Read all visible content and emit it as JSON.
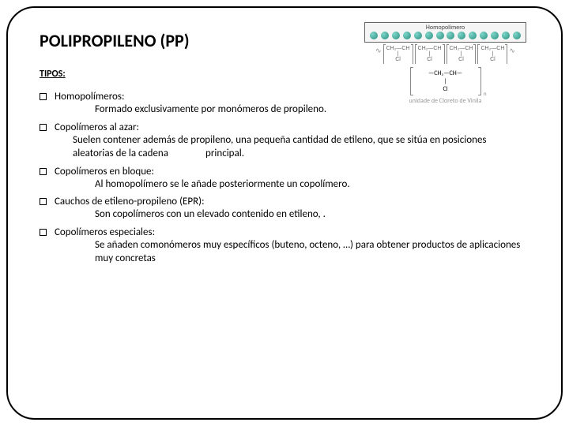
{
  "title": "POLIPROPILENO (PP)",
  "subtitle": "TIPOS:",
  "diagram": {
    "chain_label": "Homopolímero",
    "bead_color": "#2a8f82",
    "formula_groups": [
      "CH₂—CH",
      "CH₂—CH",
      "CH₂—CH",
      "CH₂—CH"
    ],
    "pendant": "Cl",
    "repeat_unit_top": "—CH₂—CH—",
    "repeat_unit_bottom": "Cl",
    "subscript": "n",
    "caption": "unidade de Cloreto de Vinila"
  },
  "items": [
    {
      "head": "Homopolímeros:",
      "body": "Formado exclusivamente por monómeros de propileno.",
      "shiftleft": false
    },
    {
      "head": "Copolímeros al azar:",
      "body": "Suelen contener además de propileno, una pequeña cantidad de etileno, que se sitúa en posiciones aleatorias de la cadena                principal.",
      "shiftleft": true
    },
    {
      "head": "Copolímeros en bloque:",
      "body": "Al homopolímero se le añade posteriormente un copolímero.",
      "shiftleft": false
    },
    {
      "head": "Cauchos de etileno-propileno (EPR):",
      "body": "Son copolímeros con un elevado contenido en etileno, .",
      "shiftleft": false
    },
    {
      "head": "Copolímeros especiales:",
      "body": "Se añaden comonómeros muy específicos (buteno, octeno, …) para obtener productos de aplicaciones muy concretas",
      "shiftleft": false
    }
  ]
}
